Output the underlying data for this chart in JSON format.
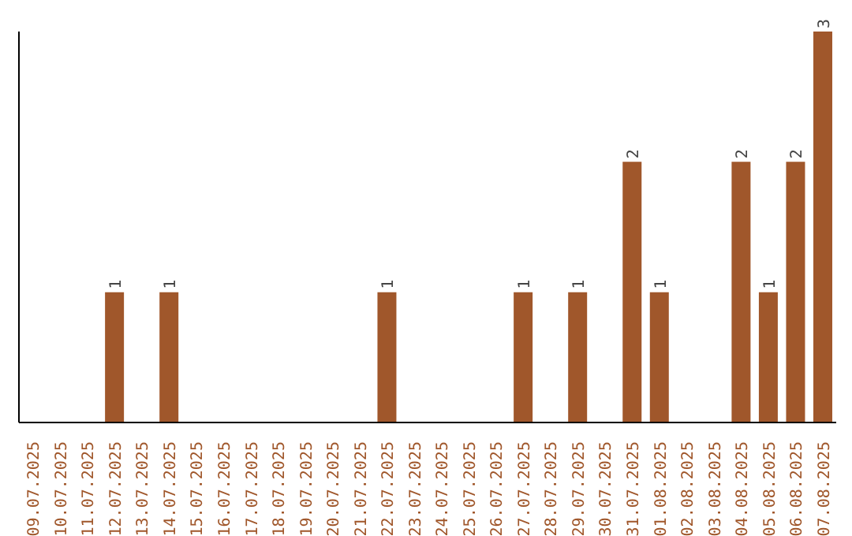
{
  "chart_data": {
    "type": "bar",
    "categories": [
      "09.07.2025",
      "10.07.2025",
      "11.07.2025",
      "12.07.2025",
      "13.07.2025",
      "14.07.2025",
      "15.07.2025",
      "16.07.2025",
      "17.07.2025",
      "18.07.2025",
      "19.07.2025",
      "20.07.2025",
      "21.07.2025",
      "22.07.2025",
      "23.07.2025",
      "24.07.2025",
      "25.07.2025",
      "26.07.2025",
      "27.07.2025",
      "28.07.2025",
      "29.07.2025",
      "30.07.2025",
      "31.07.2025",
      "01.08.2025",
      "02.08.2025",
      "03.08.2025",
      "04.08.2025",
      "05.08.2025",
      "06.08.2025",
      "07.08.2025"
    ],
    "values": [
      0,
      0,
      0,
      1,
      0,
      1,
      0,
      0,
      0,
      0,
      0,
      0,
      0,
      1,
      0,
      0,
      0,
      0,
      1,
      0,
      1,
      0,
      2,
      1,
      0,
      0,
      2,
      1,
      2,
      3
    ],
    "value_labels": [
      null,
      null,
      null,
      "1",
      null,
      "1",
      null,
      null,
      null,
      null,
      null,
      null,
      null,
      "1",
      null,
      null,
      null,
      null,
      "1",
      null,
      "1",
      null,
      "2",
      "1",
      null,
      null,
      "2",
      "1",
      "2",
      "3"
    ],
    "color": "#a0572b",
    "tick_labels": "x",
    "grid": false,
    "legend": false
  }
}
